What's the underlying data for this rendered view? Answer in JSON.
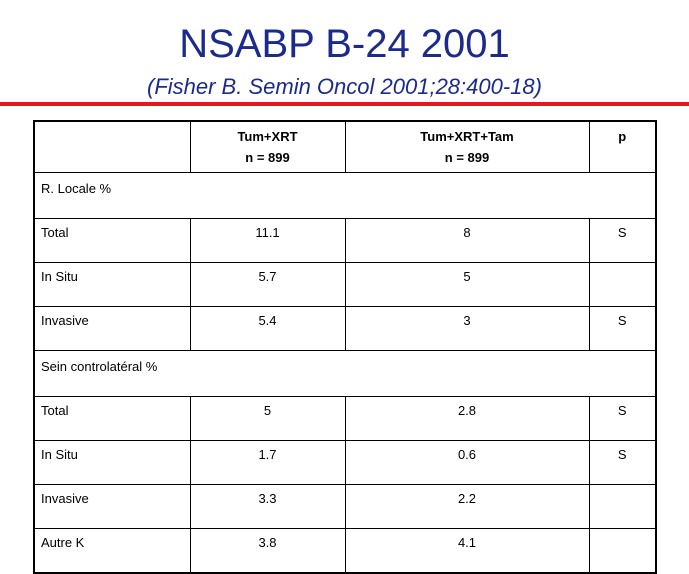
{
  "title": "NSABP B-24 2001",
  "subtitle": "(Fisher B. Semin Oncol 2001;28:400-18)",
  "table": {
    "columns": [
      {
        "line1": "Tum+XRT",
        "line2": "n = 899"
      },
      {
        "line1": "Tum+XRT+Tam",
        "line2": "n = 899"
      },
      {
        "line1": "p"
      }
    ],
    "sections": [
      {
        "label": "R. Locale %",
        "rows": [
          [
            "Total",
            11.1,
            8,
            "S"
          ],
          [
            "In Situ",
            5.7,
            5,
            null
          ],
          [
            "Invasive",
            5.4,
            3,
            "S"
          ]
        ]
      },
      {
        "label": "Sein controlatéral %",
        "rows": [
          [
            "Total",
            5,
            2.8,
            "S"
          ],
          [
            "In Situ",
            1.7,
            0.6,
            "S"
          ],
          [
            "Invasive",
            3.3,
            2.2,
            null
          ],
          [
            "Autre K",
            3.8,
            4.1,
            null
          ]
        ]
      }
    ]
  }
}
